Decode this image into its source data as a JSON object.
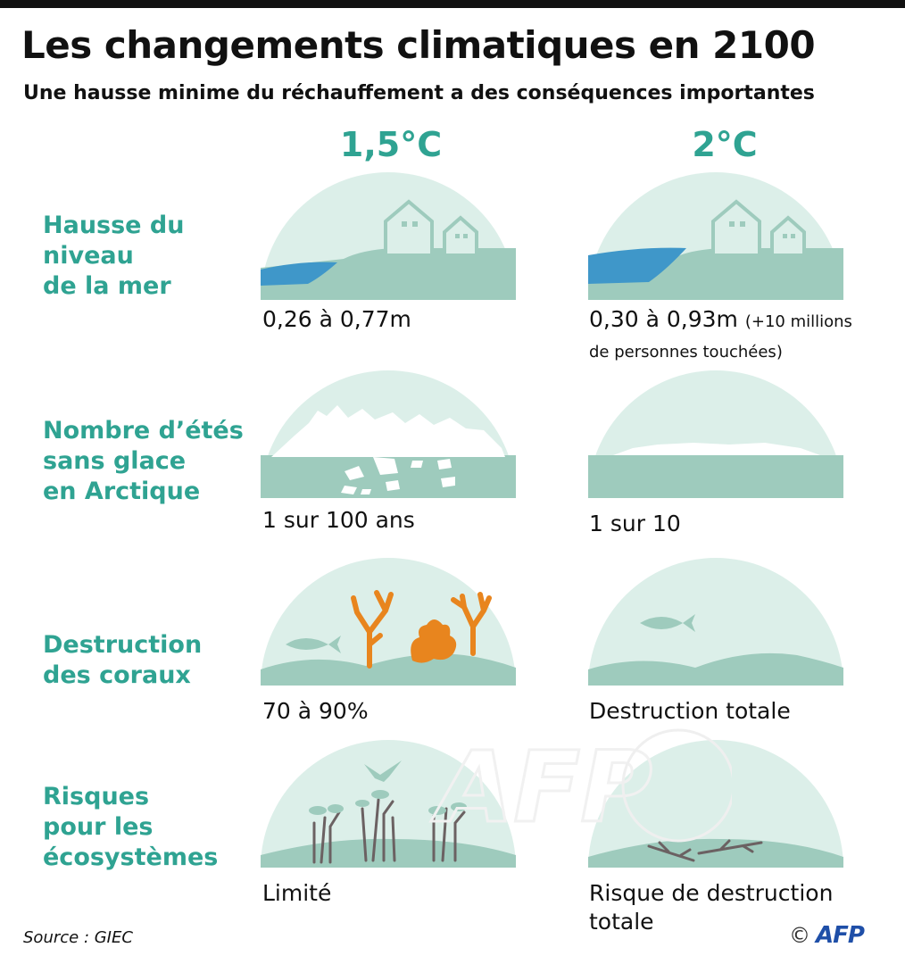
{
  "title": "Les changements climatiques en 2100",
  "subtitle": "Une hausse minime du réchauffement a des conséquences importantes",
  "columns": [
    "1,5°C",
    "2°C"
  ],
  "rows": [
    {
      "label": "Hausse du\nniveau\nde la mer",
      "left_caption": "0,26 à 0,77m",
      "right_caption_main": "0,30 à 0,93m",
      "right_caption_small": "(+10 millions",
      "right_caption_line2": "de personnes touchées)"
    },
    {
      "label": "Nombre d’étés\nsans glace\nen Arctique",
      "left_caption": "1 sur 100 ans",
      "right_caption": "1 sur 10"
    },
    {
      "label": "Destruction\ndes coraux",
      "left_caption": "70 à 90%",
      "right_caption": "Destruction totale"
    },
    {
      "label": "Risques\npour les\nécosystèmes",
      "left_caption": "Limité",
      "right_caption_line1": "Risque de destruction",
      "right_caption_line2": "totale"
    }
  ],
  "source": "Source : GIEC",
  "credit": {
    "copyright": "©",
    "logo": "AFP"
  },
  "watermark": "AFP",
  "colors": {
    "teal_text": "#2fa392",
    "dome_light": "#dcefe9",
    "ground": "#9ecbbd",
    "water_blue": "#3f97c9",
    "coral_orange": "#e8851e",
    "afp_blue": "#1f4fa8"
  }
}
